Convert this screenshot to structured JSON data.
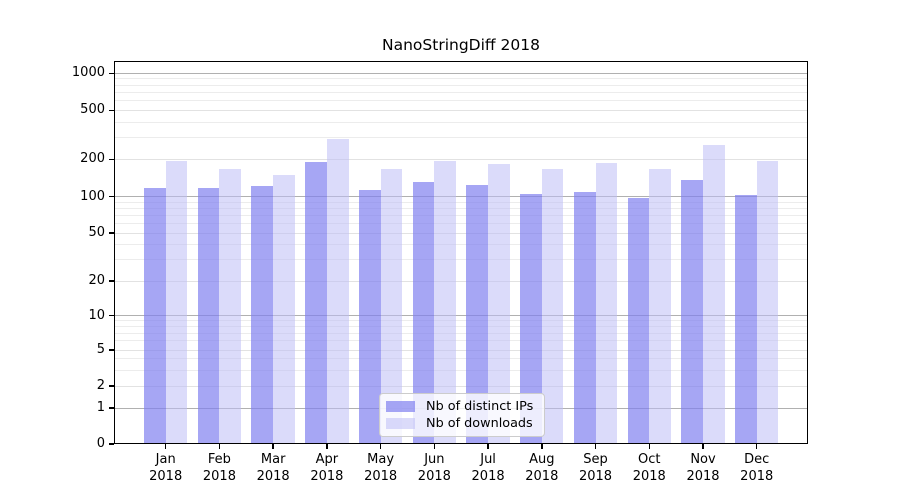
{
  "title": "NanoStringDiff 2018",
  "chart_data": {
    "type": "bar",
    "title": "NanoStringDiff 2018",
    "year": "2018",
    "categories": [
      "Jan",
      "Feb",
      "Mar",
      "Apr",
      "May",
      "Jun",
      "Jul",
      "Aug",
      "Sep",
      "Oct",
      "Nov",
      "Dec"
    ],
    "series": [
      {
        "name": "Nb of distinct IPs",
        "color": "rgba(128,128,240,0.7)",
        "values": [
          117,
          117,
          121,
          191,
          112,
          131,
          123,
          105,
          108,
          97,
          135,
          103
        ]
      },
      {
        "name": "Nb of downloads",
        "color": "rgba(190,190,245,0.55)",
        "values": [
          193,
          166,
          149,
          290,
          166,
          195,
          183,
          166,
          187,
          168,
          263,
          194
        ]
      }
    ],
    "y_scale": "symlog",
    "y_ticks": [
      0,
      1,
      2,
      5,
      10,
      20,
      50,
      100,
      200,
      500,
      1000
    ],
    "y_minor_ticks": [
      3,
      4,
      6,
      7,
      8,
      9,
      30,
      40,
      60,
      70,
      80,
      90,
      300,
      400,
      600,
      700,
      800,
      900
    ],
    "ylim": [
      0,
      1280
    ],
    "xlabel": "",
    "ylabel": "",
    "grid": true,
    "legend_position": "bottom-center",
    "colors": {
      "major_gridline": "#b0b0b0",
      "mid_gridline": "#e2e2e2",
      "minor_gridline": "#ececec",
      "axis": "#000000",
      "legend_border": "#cccccc"
    }
  }
}
